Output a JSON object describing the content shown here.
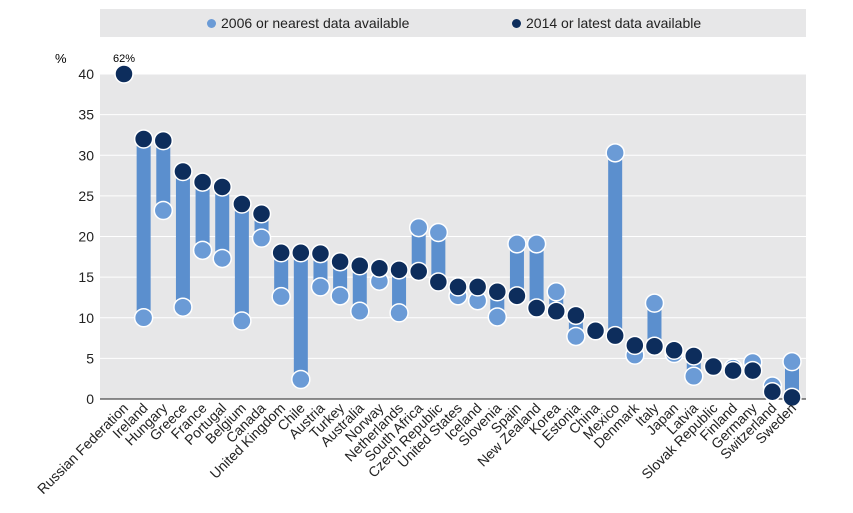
{
  "chart_data": {
    "type": "dumbbell",
    "ylabel": "%",
    "ylim": [
      0,
      40
    ],
    "yticks": [
      "0",
      "5",
      "10",
      "15",
      "20",
      "25",
      "30",
      "35",
      "40"
    ],
    "legend": {
      "position": "top",
      "series_2006": "2006 or nearest data available",
      "series_2014": "2014 or latest data available"
    },
    "colors": {
      "light": "#6b9bd6",
      "dark": "#0d2d5c",
      "bar": "#5b8fce",
      "background": "#e7e7e8",
      "grid": "#ffffff"
    },
    "annotation": {
      "text": "62%",
      "category": "Russian Federation",
      "value": 62
    },
    "categories": [
      "Russian Federation",
      "Ireland",
      "Hungary",
      "Greece",
      "France",
      "Portugal",
      "Belgium",
      "Canada",
      "United Kingdom",
      "Chile",
      "Austria",
      "Turkey",
      "Australia",
      "Norway",
      "Netherlands",
      "South Africa",
      "Czech Republic",
      "United States",
      "Iceland",
      "Slovenia",
      "Spain",
      "New Zealand",
      "Korea",
      "Estonia",
      "China",
      "Mexico",
      "Denmark",
      "Italy",
      "Japan",
      "Latvia",
      "Slovak Republic",
      "Finland",
      "Germany",
      "Switzerland",
      "Sweden"
    ],
    "series": [
      {
        "name": "2006 or nearest data available",
        "values": [
          null,
          10,
          23.2,
          11.3,
          18.3,
          17.3,
          9.6,
          19.8,
          12.6,
          2.4,
          13.8,
          12.7,
          10.8,
          14.5,
          10.6,
          21.1,
          20.5,
          12.7,
          12.1,
          10.1,
          19.1,
          19.1,
          13.2,
          7.7,
          8.4,
          30.3,
          5.4,
          11.8,
          5.6,
          2.8,
          4,
          3.8,
          4.5,
          1.6,
          4.6
        ]
      },
      {
        "name": "2014 or latest data available",
        "values": [
          62,
          32,
          31.8,
          28,
          26.7,
          26.1,
          24,
          22.8,
          18,
          18,
          17.9,
          16.9,
          16.4,
          16.1,
          15.9,
          15.7,
          14.4,
          13.8,
          13.8,
          13.2,
          12.7,
          11.2,
          10.8,
          10.3,
          8.4,
          7.8,
          6.6,
          6.5,
          6,
          5.3,
          4,
          3.5,
          3.5,
          0.9,
          0.2
        ]
      }
    ]
  }
}
